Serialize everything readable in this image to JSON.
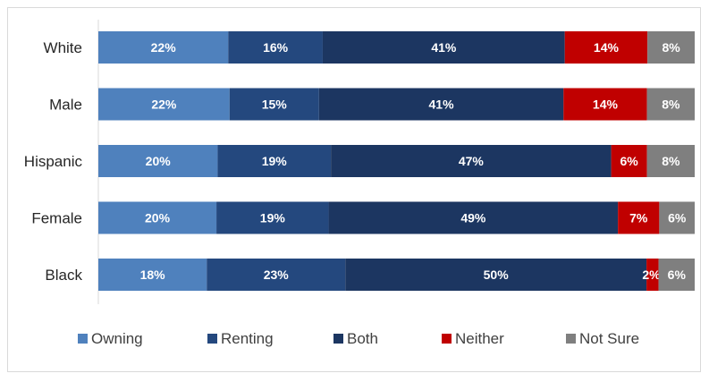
{
  "chart_data": {
    "type": "bar",
    "orientation": "horizontal",
    "stacked": true,
    "title": "",
    "xlabel": "",
    "ylabel": "",
    "xlim": [
      0,
      100
    ],
    "legend_position": "bottom",
    "grid": false,
    "categories": [
      "White",
      "Male",
      "Hispanic",
      "Female",
      "Black"
    ],
    "series": [
      {
        "name": "Owning",
        "color": "#4f81bd",
        "values": [
          22,
          22,
          20,
          20,
          18
        ],
        "labels": [
          "22%",
          "22%",
          "20%",
          "20%",
          "18%"
        ]
      },
      {
        "name": "Renting",
        "color": "#24487e",
        "values": [
          16,
          15,
          19,
          19,
          23
        ],
        "labels": [
          "16%",
          "15%",
          "19%",
          "19%",
          "23%"
        ]
      },
      {
        "name": "Both",
        "color": "#1c3661",
        "values": [
          41,
          41,
          47,
          49,
          50
        ],
        "labels": [
          "41%",
          "41%",
          "47%",
          "49%",
          "50%"
        ]
      },
      {
        "name": "Neither",
        "color": "#c00000",
        "values": [
          14,
          14,
          6,
          7,
          2
        ],
        "labels": [
          "14%",
          "14%",
          "6%",
          "7%",
          "2%"
        ]
      },
      {
        "name": "Not Sure",
        "color": "#7f7f7f",
        "values": [
          8,
          8,
          8,
          6,
          6
        ],
        "labels": [
          "8%",
          "8%",
          "8%",
          "6%",
          "6%"
        ]
      }
    ]
  }
}
